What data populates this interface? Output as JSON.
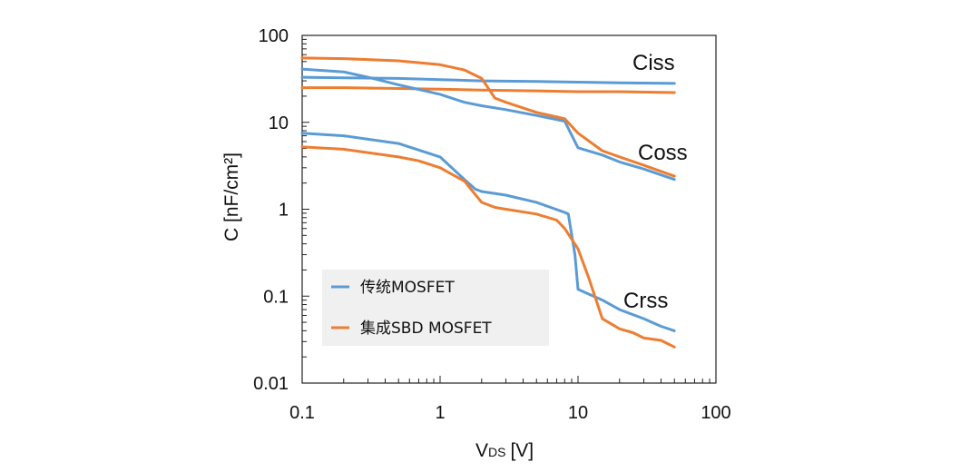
{
  "chart_data": {
    "type": "line",
    "x_scale": "log",
    "y_scale": "log",
    "xlim": [
      0.1,
      100
    ],
    "ylim": [
      0.01,
      100
    ],
    "x_ticks": [
      "0.1",
      "1",
      "10",
      "100"
    ],
    "y_ticks": [
      "100",
      "10",
      "1",
      "0.1",
      "0.01"
    ],
    "xlabel_main": "V",
    "xlabel_sub": "DS",
    "xlabel_unit": "[V]",
    "ylabel": "C [nF/cm²]",
    "grid": false,
    "legend_position": "lower-left",
    "legend": [
      {
        "label": "传统MOSFET",
        "color": "#5b9bd5"
      },
      {
        "label": "集成SBD MOSFET",
        "color": "#ed7d31"
      }
    ],
    "annotations": [
      {
        "text": "Ciss",
        "x": 25,
        "y": 65
      },
      {
        "text": "Coss",
        "x": 30,
        "y": 5.8
      },
      {
        "text": "Crss",
        "x": 20,
        "y": 0.1
      }
    ],
    "series": [
      {
        "group": "传统MOSFET",
        "curve": "Ciss",
        "color": "#5b9bd5",
        "points": [
          [
            0.1,
            33
          ],
          [
            0.2,
            32.5
          ],
          [
            0.5,
            32
          ],
          [
            1,
            31
          ],
          [
            2,
            30
          ],
          [
            5,
            29.5
          ],
          [
            10,
            29
          ],
          [
            20,
            28.5
          ],
          [
            50,
            28
          ]
        ]
      },
      {
        "group": "集成SBD MOSFET",
        "curve": "Ciss",
        "color": "#ed7d31",
        "points": [
          [
            0.1,
            25
          ],
          [
            0.2,
            25
          ],
          [
            0.5,
            24.5
          ],
          [
            1,
            24
          ],
          [
            2,
            23.5
          ],
          [
            5,
            23
          ],
          [
            10,
            22.5
          ],
          [
            20,
            22.5
          ],
          [
            50,
            22
          ]
        ]
      },
      {
        "group": "传统MOSFET",
        "curve": "Coss",
        "color": "#5b9bd5",
        "points": [
          [
            0.1,
            41
          ],
          [
            0.2,
            38
          ],
          [
            0.3,
            33
          ],
          [
            0.5,
            27
          ],
          [
            1,
            21
          ],
          [
            1.5,
            17
          ],
          [
            2,
            15.5
          ],
          [
            3,
            14
          ],
          [
            5,
            12
          ],
          [
            8,
            10.3
          ],
          [
            10,
            5.1
          ],
          [
            15,
            4.2
          ],
          [
            20,
            3.5
          ],
          [
            30,
            2.9
          ],
          [
            50,
            2.2
          ]
        ]
      },
      {
        "group": "集成SBD MOSFET",
        "curve": "Coss",
        "color": "#ed7d31",
        "points": [
          [
            0.1,
            55
          ],
          [
            0.2,
            54
          ],
          [
            0.5,
            51
          ],
          [
            1,
            46
          ],
          [
            1.5,
            40
          ],
          [
            2,
            32
          ],
          [
            2.5,
            19
          ],
          [
            3,
            17
          ],
          [
            5,
            13
          ],
          [
            8,
            11
          ],
          [
            10,
            7.5
          ],
          [
            15,
            4.7
          ],
          [
            20,
            4
          ],
          [
            30,
            3.2
          ],
          [
            50,
            2.4
          ]
        ]
      },
      {
        "group": "传统MOSFET",
        "curve": "Crss",
        "color": "#5b9bd5",
        "points": [
          [
            0.1,
            7.5
          ],
          [
            0.2,
            7
          ],
          [
            0.5,
            5.7
          ],
          [
            1,
            4
          ],
          [
            1.5,
            2.2
          ],
          [
            1.8,
            1.7
          ],
          [
            2,
            1.6
          ],
          [
            3,
            1.45
          ],
          [
            5,
            1.2
          ],
          [
            8,
            0.92
          ],
          [
            8.5,
            0.88
          ],
          [
            9.5,
            0.3
          ],
          [
            10,
            0.12
          ],
          [
            15,
            0.09
          ],
          [
            20,
            0.07
          ],
          [
            30,
            0.055
          ],
          [
            40,
            0.045
          ],
          [
            50,
            0.04
          ]
        ]
      },
      {
        "group": "集成SBD MOSFET",
        "curve": "Crss",
        "color": "#ed7d31",
        "points": [
          [
            0.1,
            5.2
          ],
          [
            0.2,
            4.9
          ],
          [
            0.5,
            4
          ],
          [
            0.7,
            3.6
          ],
          [
            1,
            3
          ],
          [
            1.5,
            2.1
          ],
          [
            2,
            1.2
          ],
          [
            2.5,
            1.05
          ],
          [
            3,
            1
          ],
          [
            5,
            0.88
          ],
          [
            7,
            0.75
          ],
          [
            8,
            0.6
          ],
          [
            10,
            0.35
          ],
          [
            12,
            0.16
          ],
          [
            15,
            0.055
          ],
          [
            20,
            0.042
          ],
          [
            25,
            0.038
          ],
          [
            30,
            0.033
          ],
          [
            40,
            0.031
          ],
          [
            50,
            0.026
          ]
        ]
      }
    ]
  }
}
